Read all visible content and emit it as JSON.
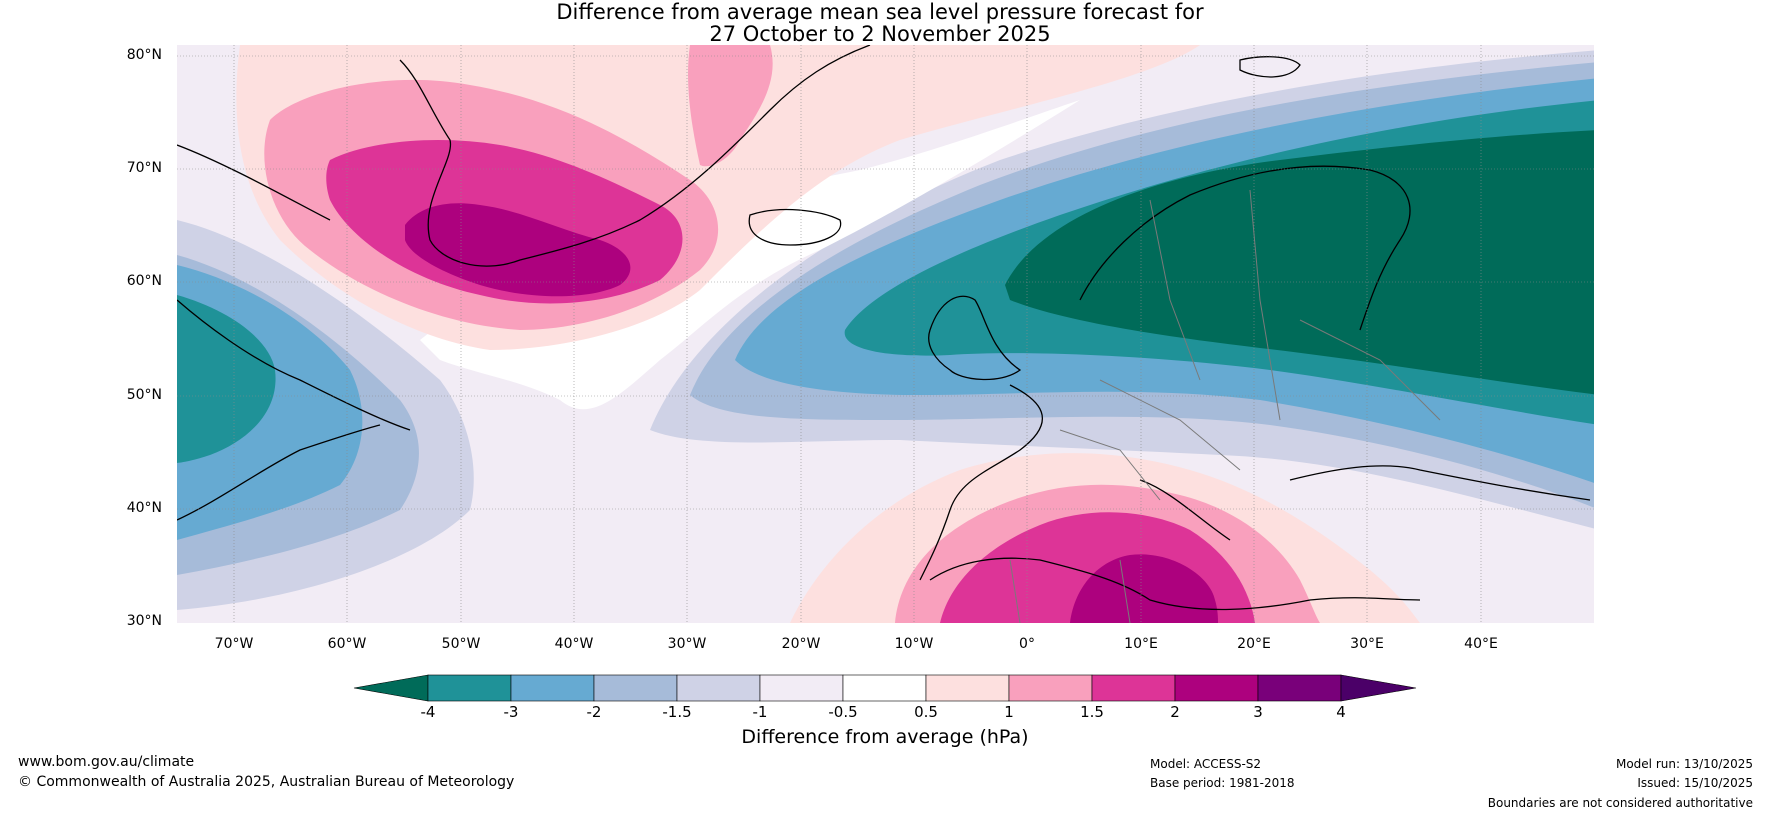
{
  "title": {
    "line1": "Difference from average mean sea level pressure forecast for",
    "line2": "27 October to 2 November 2025"
  },
  "map": {
    "lat_labels": [
      "80°N",
      "70°N",
      "60°N",
      "50°N",
      "40°N",
      "30°N"
    ],
    "lon_labels": [
      "70°W",
      "60°W",
      "50°W",
      "40°W",
      "30°W",
      "20°W",
      "10°W",
      "0°",
      "10°E",
      "20°E",
      "30°E",
      "40°E"
    ],
    "lat_range": [
      30,
      81
    ],
    "lon_range": [
      -75,
      50
    ],
    "features": {
      "high_greenland": {
        "label": "positive anomaly centre near southern Greenland",
        "max_hPa": 3
      },
      "high_mediterranean": {
        "label": "positive anomaly centre over the central Mediterranean",
        "max_hPa": 3
      },
      "low_scandinavia": {
        "label": "negative anomaly over northern Europe / Scandinavia",
        "min_hPa": -4
      },
      "low_newfoundland": {
        "label": "negative anomaly near Newfoundland",
        "min_hPa": -3
      }
    }
  },
  "colorbar": {
    "levels": [
      "-4",
      "-3",
      "-2",
      "-1.5",
      "-1",
      "-0.5",
      "0.5",
      "1",
      "1.5",
      "2",
      "3",
      "4"
    ],
    "colors": {
      "below_min": "#006b59",
      "c1": "#1f9298",
      "c2": "#66aad2",
      "c3": "#a6bbd9",
      "c4": "#cfd2e6",
      "c5": "#f2ecf5",
      "c6": "#ffffff",
      "c7": "#fde0df",
      "c8": "#f9a0bd",
      "c9": "#dd3497",
      "c10": "#ad017e",
      "c11": "#79007a",
      "above_max": "#4b0068"
    },
    "title": "Difference from average (hPa)"
  },
  "footer": {
    "website": "www.bom.gov.au/climate",
    "copyright": "© Commonwealth of Australia 2025, Australian Bureau of Meteorology",
    "model": "Model: ACCESS-S2",
    "base_period": "Base period: 1981-2018",
    "model_run": "Model run: 13/10/2025",
    "issued": "Issued: 15/10/2025",
    "disclaimer": "Boundaries are not considered authoritative"
  }
}
